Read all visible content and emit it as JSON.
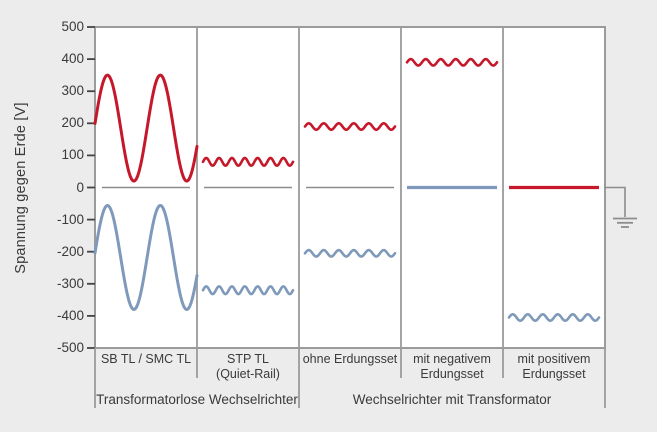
{
  "chart_data": {
    "type": "line",
    "title": "",
    "ylabel": "Spannung gegen Erde [V]",
    "ylim": [
      -500,
      500
    ],
    "y_ticks": [
      500,
      400,
      300,
      200,
      100,
      0,
      -100,
      -200,
      -300,
      -400,
      -500
    ],
    "unit": "V",
    "legend": "none",
    "grid": "off",
    "colors": {
      "positive_pole_red": "#c5182b",
      "negative_pole_blue": "#7f99ba",
      "zero_line": "#8c8c8c",
      "panel_border": "#9b9b9b",
      "text": "#3a3a3a",
      "panel_fill": "#ffffff",
      "canvas_bg": "#ececec"
    },
    "panels": [
      {
        "label_lines": [
          "SB TL / SMC TL"
        ],
        "series": [
          {
            "color_key": "blue",
            "wave": "sine",
            "center_v": -218,
            "amplitude_v": 162,
            "cycles": 1.93,
            "phase_deg": 5,
            "approx_range_v": [
              -380,
              -56
            ]
          },
          {
            "color_key": "red",
            "wave": "sine",
            "center_v": 185,
            "amplitude_v": 165,
            "cycles": 1.93,
            "phase_deg": 5,
            "approx_range_v": [
              20,
              350
            ]
          }
        ]
      },
      {
        "label_lines": [
          "STP TL",
          "(Quiet-Rail)"
        ],
        "series": [
          {
            "color_key": "blue",
            "wave": "ripple",
            "center_v": -320,
            "amplitude_v": 12,
            "cycles": 7
          },
          {
            "color_key": "red",
            "wave": "ripple",
            "center_v": 80,
            "amplitude_v": 12,
            "cycles": 7
          }
        ]
      },
      {
        "label_lines": [
          "ohne Erdungsset"
        ],
        "series": [
          {
            "color_key": "blue",
            "wave": "ripple",
            "center_v": -205,
            "amplitude_v": 10,
            "cycles": 6
          },
          {
            "color_key": "red",
            "wave": "ripple",
            "center_v": 190,
            "amplitude_v": 10,
            "cycles": 6
          }
        ]
      },
      {
        "label_lines": [
          "mit negativem",
          "Erdungsset"
        ],
        "series": [
          {
            "color_key": "blue",
            "wave": "flat",
            "center_v": 0
          },
          {
            "color_key": "red",
            "wave": "ripple",
            "center_v": 390,
            "amplitude_v": 10,
            "cycles": 6
          }
        ]
      },
      {
        "label_lines": [
          "mit positivem",
          "Erdungsset"
        ],
        "series": [
          {
            "color_key": "blue",
            "wave": "ripple",
            "center_v": -405,
            "amplitude_v": 10,
            "cycles": 6
          },
          {
            "color_key": "red",
            "wave": "flat",
            "center_v": 0
          }
        ]
      }
    ],
    "groups": [
      {
        "label": "Transformatorlose Wechselrichter",
        "panel_span": [
          0,
          1
        ]
      },
      {
        "label": "Wechselrichter mit Transformator",
        "panel_span": [
          2,
          4
        ]
      }
    ],
    "annotations": {
      "ground_symbol": "earth ground connected at 0 V on right edge"
    }
  }
}
